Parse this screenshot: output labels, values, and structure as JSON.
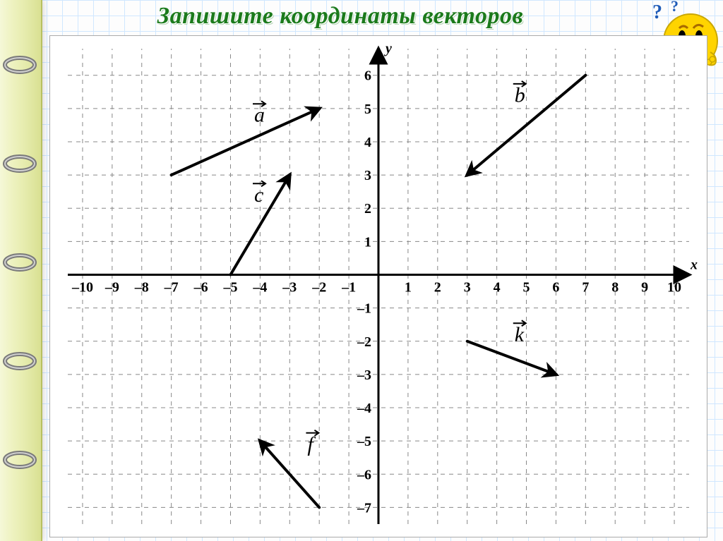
{
  "title": "Запишите координаты векторов",
  "chart": {
    "type": "vector-plot",
    "background_color": "#ffffff",
    "grid_color": "#888888",
    "axis_color": "#000000",
    "xlim": [
      -10.5,
      10.5
    ],
    "ylim": [
      -7.5,
      6.8
    ],
    "xticks": [
      -10,
      -9,
      -8,
      -7,
      -6,
      -5,
      -4,
      -3,
      -2,
      -1,
      1,
      2,
      3,
      4,
      5,
      6,
      7,
      8,
      9,
      10
    ],
    "yticks": [
      -7,
      -6,
      -5,
      -4,
      -3,
      -2,
      -1,
      1,
      2,
      3,
      4,
      5,
      6
    ],
    "x_axis_label": "x",
    "y_axis_label": "y",
    "vectors": [
      {
        "name": "a",
        "from": [
          -7,
          3
        ],
        "to": [
          -2,
          5
        ],
        "label_at": [
          -4.2,
          4.6
        ]
      },
      {
        "name": "c",
        "from": [
          -5,
          0
        ],
        "to": [
          -3,
          3
        ],
        "label_at": [
          -4.2,
          2.2
        ]
      },
      {
        "name": "b",
        "from": [
          7,
          6
        ],
        "to": [
          3,
          3
        ],
        "label_at": [
          4.6,
          5.2
        ],
        "label_dir": "right"
      },
      {
        "name": "k",
        "from": [
          3,
          -2
        ],
        "to": [
          6,
          -3
        ],
        "label_at": [
          4.6,
          -2.0
        ]
      },
      {
        "name": "f",
        "from": [
          -2,
          -7
        ],
        "to": [
          -4,
          -5
        ],
        "label_at": [
          -2.4,
          -5.3
        ]
      }
    ],
    "vector_color": "#000000",
    "vector_width": 4,
    "grid_dash": "6,6",
    "tick_fontsize": 20,
    "axis_label_fontsize": 20,
    "vector_label_fontsize": 30
  },
  "binder": {
    "ring_count": 5,
    "ring_color_outer": "#7a7a7a",
    "ring_color_inner": "#cfcfcf"
  },
  "emoji": {
    "face_color": "#ffd400",
    "mark_color": "#1e5bb8"
  }
}
